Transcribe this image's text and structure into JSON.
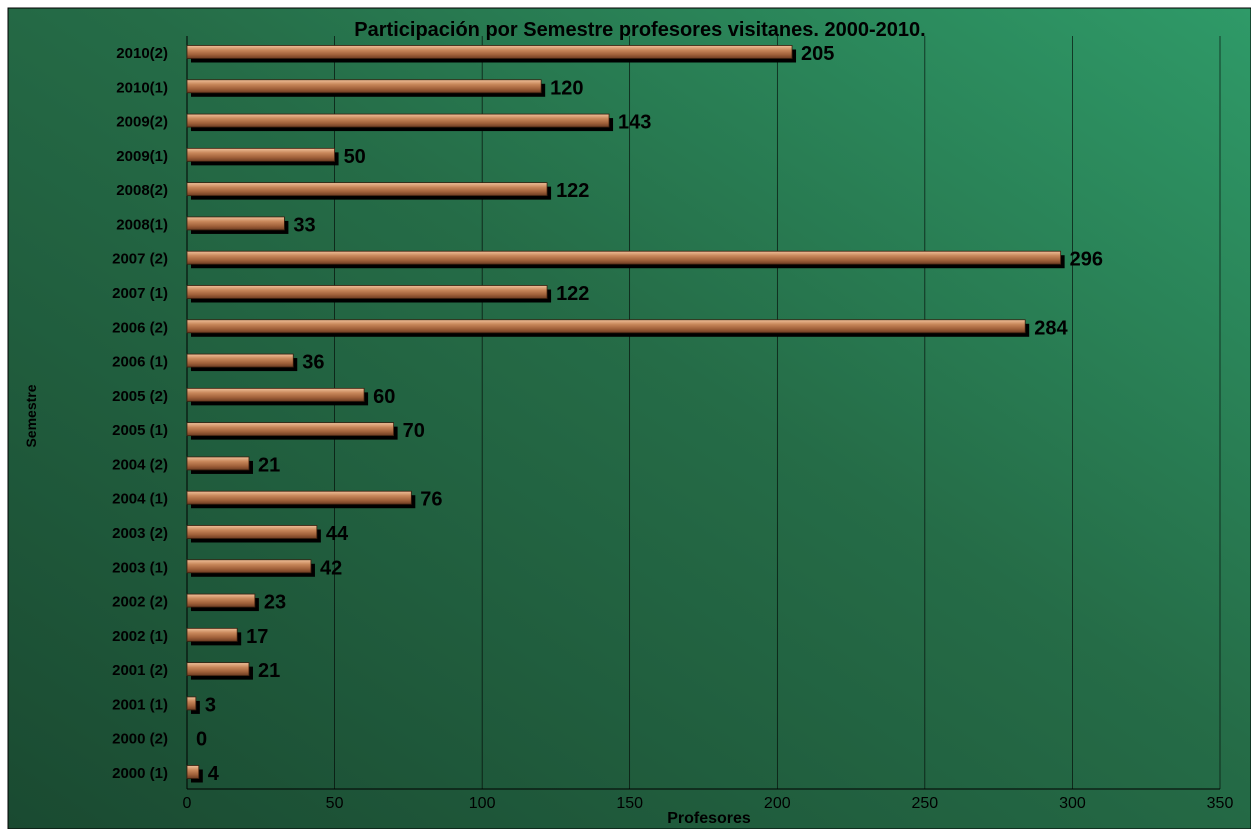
{
  "chart_data": {
    "type": "bar",
    "orientation": "horizontal",
    "title": "Participación por Semestre profesores visitanes. 2000-2010.",
    "xlabel": "Profesores",
    "ylabel": "Semestre",
    "xlim": [
      0,
      350
    ],
    "x_ticks": [
      "0",
      "50",
      "100",
      "150",
      "200",
      "250",
      "300",
      "350"
    ],
    "grid": "vertical",
    "legend": "none",
    "categories": [
      "2010(2)",
      "2010(1)",
      "2009(2)",
      "2009(1)",
      "2008(2)",
      "2008(1)",
      "2007 (2)",
      "2007 (1)",
      "2006 (2)",
      "2006 (1)",
      "2005 (2)",
      "2005 (1)",
      "2004 (2)",
      "2004 (1)",
      "2003 (2)",
      "2003 (1)",
      "2002 (2)",
      "2002 (1)",
      "2001 (2)",
      "2001 (1)",
      "2000 (2)",
      "2000 (1)"
    ],
    "values": [
      205,
      120,
      143,
      50,
      122,
      33,
      296,
      122,
      284,
      36,
      60,
      70,
      21,
      76,
      44,
      42,
      23,
      17,
      21,
      3,
      0,
      4
    ],
    "data_labels": [
      "205",
      "120",
      "143",
      "50",
      "122",
      "33",
      "296",
      "122",
      "284",
      "36",
      "60",
      "70",
      "21",
      "76",
      "44",
      "42",
      "23",
      "17",
      "21",
      "3",
      "0",
      "4"
    ],
    "colors": {
      "background_dark": "#1e4f35",
      "background_light": "#2f9a68",
      "bar_light": "#e3a67c",
      "bar_mid": "#b8744a",
      "bar_dark": "#7a4428",
      "bar_shadow": "#000000",
      "grid": "#000000",
      "text": "#000000"
    }
  }
}
